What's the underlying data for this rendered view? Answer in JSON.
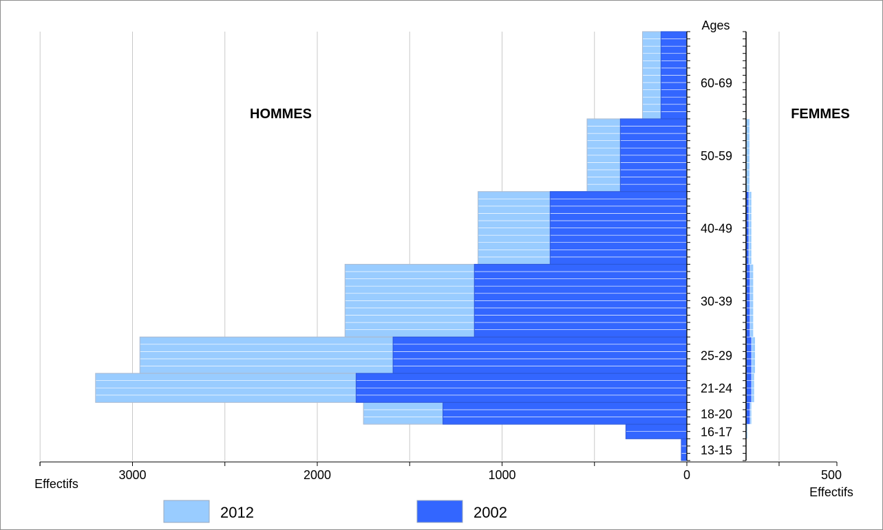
{
  "chart_data": {
    "type": "bar",
    "orientation": "horizontal",
    "stacked": false,
    "left_title": "HOMMES",
    "right_title": "FEMMES",
    "ages_label": "Ages",
    "xlabel_left": "Effectifs",
    "xlabel_right": "Effectifs",
    "left_axis": {
      "min": 0,
      "max": 3500,
      "ticks": [
        3000,
        2000,
        1000,
        0
      ],
      "tick_labels": [
        "3000",
        "2000",
        "1000",
        "0"
      ]
    },
    "right_axis": {
      "min": 0,
      "max": 500,
      "ticks": [
        500
      ],
      "tick_labels": [
        "500"
      ]
    },
    "grid": true,
    "age_min": 13,
    "age_max": 71,
    "age_groups": [
      {
        "label": "60-69",
        "from": 60,
        "to": 69
      },
      {
        "label": "50-59",
        "from": 50,
        "to": 59
      },
      {
        "label": "40-49",
        "from": 40,
        "to": 49
      },
      {
        "label": "30-39",
        "from": 30,
        "to": 39
      },
      {
        "label": "25-29",
        "from": 25,
        "to": 29
      },
      {
        "label": "21-24",
        "from": 21,
        "to": 24
      },
      {
        "label": "18-20",
        "from": 18,
        "to": 20
      },
      {
        "label": "16-17",
        "from": 16,
        "to": 17
      },
      {
        "label": "13-15",
        "from": 13,
        "to": 15
      }
    ],
    "series": [
      {
        "name": "2012",
        "color": "#99ccff",
        "groups": [
          {
            "from": 60,
            "to": 71,
            "hommes": 240,
            "femmes": 0
          },
          {
            "from": 50,
            "to": 59,
            "hommes": 540,
            "femmes": 20
          },
          {
            "from": 40,
            "to": 49,
            "hommes": 1130,
            "femmes": 30
          },
          {
            "from": 30,
            "to": 39,
            "hommes": 1850,
            "femmes": 40
          },
          {
            "from": 25,
            "to": 29,
            "hommes": 2960,
            "femmes": 50
          },
          {
            "from": 21,
            "to": 24,
            "hommes": 3200,
            "femmes": 45
          },
          {
            "from": 18,
            "to": 20,
            "hommes": 1750,
            "femmes": 30
          },
          {
            "from": 16,
            "to": 17,
            "hommes": 330,
            "femmes": 8
          },
          {
            "from": 13,
            "to": 15,
            "hommes": 30,
            "femmes": 0
          }
        ]
      },
      {
        "name": "2002",
        "color": "#3366ff",
        "groups": [
          {
            "from": 60,
            "to": 71,
            "hommes": 140,
            "femmes": 0
          },
          {
            "from": 50,
            "to": 59,
            "hommes": 360,
            "femmes": 0
          },
          {
            "from": 40,
            "to": 49,
            "hommes": 740,
            "femmes": 15
          },
          {
            "from": 30,
            "to": 39,
            "hommes": 1150,
            "femmes": 22
          },
          {
            "from": 25,
            "to": 29,
            "hommes": 1590,
            "femmes": 30
          },
          {
            "from": 21,
            "to": 24,
            "hommes": 1790,
            "femmes": 30
          },
          {
            "from": 18,
            "to": 20,
            "hommes": 1320,
            "femmes": 22
          },
          {
            "from": 16,
            "to": 17,
            "hommes": 330,
            "femmes": 0
          },
          {
            "from": 13,
            "to": 15,
            "hommes": 30,
            "femmes": 0
          }
        ]
      }
    ],
    "legend": [
      {
        "label": "2012",
        "color": "#99ccff"
      },
      {
        "label": "2002",
        "color": "#3366ff"
      }
    ],
    "legend_position": "bottom-left"
  }
}
